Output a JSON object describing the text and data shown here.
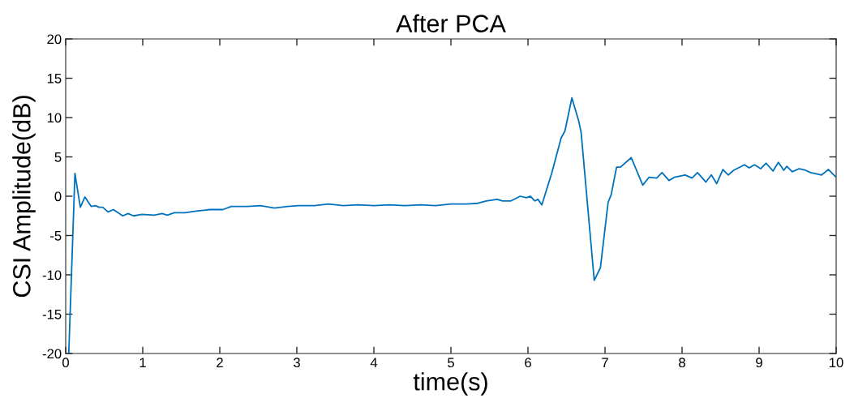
{
  "chart_data": {
    "type": "line",
    "title": "After PCA",
    "xlabel": "time(s)",
    "ylabel": "CSI Amplitude(dB)",
    "xlim": [
      0,
      10
    ],
    "ylim": [
      -20,
      20
    ],
    "xticks": [
      0,
      1,
      2,
      3,
      4,
      5,
      6,
      7,
      8,
      9,
      10
    ],
    "yticks": [
      -20,
      -15,
      -10,
      -5,
      0,
      5,
      10,
      15,
      20
    ],
    "grid": false,
    "marker": "none",
    "line_style": "solid",
    "series": [
      {
        "color": "#0072bd",
        "x": [
          0.04,
          0.12,
          0.19,
          0.25,
          0.33,
          0.39,
          0.43,
          0.48,
          0.55,
          0.62,
          0.74,
          0.81,
          0.88,
          0.99,
          1.15,
          1.25,
          1.32,
          1.41,
          1.55,
          1.69,
          1.87,
          2.04,
          2.15,
          2.36,
          2.53,
          2.71,
          2.88,
          3.02,
          3.23,
          3.41,
          3.6,
          3.8,
          4.0,
          4.2,
          4.4,
          4.6,
          4.8,
          5.0,
          5.2,
          5.35,
          5.46,
          5.6,
          5.67,
          5.78,
          5.9,
          5.98,
          6.03,
          6.09,
          6.13,
          6.18,
          6.31,
          6.43,
          6.48,
          6.57,
          6.66,
          6.69,
          6.86,
          6.94,
          7.04,
          7.08,
          7.15,
          7.2,
          7.34,
          7.49,
          7.57,
          7.67,
          7.74,
          7.83,
          7.9,
          8.04,
          8.13,
          8.2,
          8.31,
          8.38,
          8.45,
          8.53,
          8.6,
          8.67,
          8.81,
          8.87,
          8.94,
          9.02,
          9.09,
          9.18,
          9.25,
          9.32,
          9.36,
          9.43,
          9.52,
          9.6,
          9.67,
          9.81,
          9.9,
          9.99
        ],
        "values": [
          -20,
          2.9,
          -1.4,
          -0.1,
          -1.3,
          -1.2,
          -1.4,
          -1.4,
          -2.0,
          -1.7,
          -2.5,
          -2.2,
          -2.5,
          -2.3,
          -2.4,
          -2.2,
          -2.4,
          -2.1,
          -2.1,
          -1.9,
          -1.7,
          -1.7,
          -1.3,
          -1.3,
          -1.2,
          -1.5,
          -1.3,
          -1.2,
          -1.2,
          -1.0,
          -1.2,
          -1.1,
          -1.2,
          -1.1,
          -1.2,
          -1.1,
          -1.2,
          -1.0,
          -1.0,
          -0.9,
          -0.6,
          -0.4,
          -0.6,
          -0.6,
          0.0,
          -0.2,
          0.0,
          -0.6,
          -0.4,
          -1.1,
          3.0,
          7.4,
          8.3,
          12.5,
          9.5,
          8.1,
          -10.7,
          -9.1,
          -0.8,
          0.2,
          3.7,
          3.7,
          4.9,
          1.4,
          2.4,
          2.3,
          3.0,
          2.0,
          2.4,
          2.7,
          2.3,
          3.0,
          1.8,
          2.7,
          1.6,
          3.4,
          2.7,
          3.3,
          4.0,
          3.6,
          4.0,
          3.5,
          4.2,
          3.2,
          4.3,
          3.3,
          3.8,
          3.1,
          3.5,
          3.3,
          3.0,
          2.7,
          3.4,
          2.5
        ]
      }
    ]
  }
}
